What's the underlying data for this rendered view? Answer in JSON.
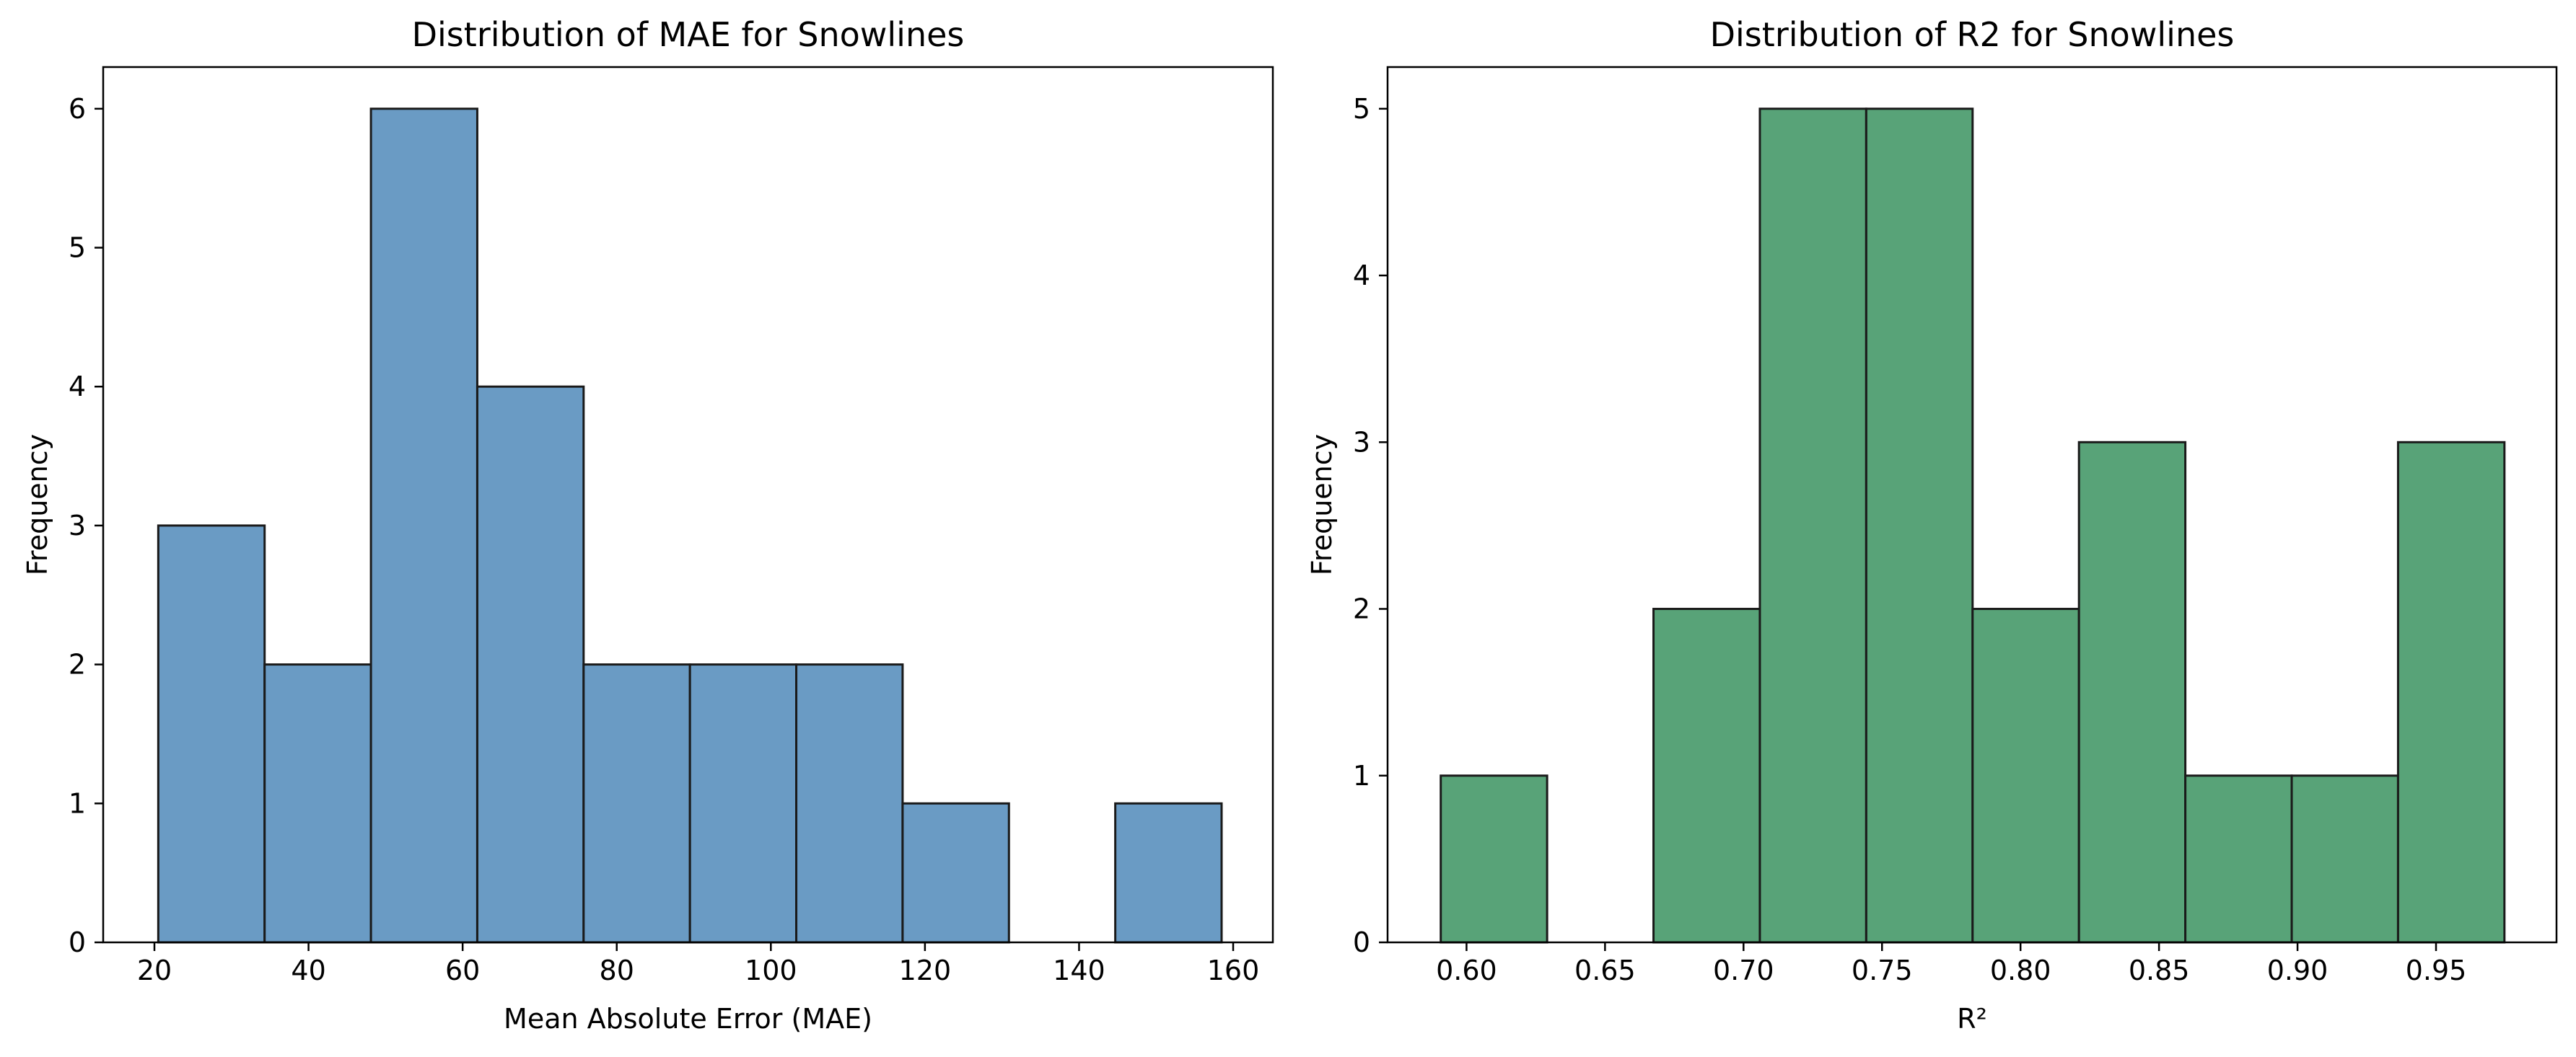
{
  "chart_data": [
    {
      "type": "bar",
      "title": "Distribution of MAE for Snowlines",
      "xlabel": "Mean Absolute Error (MAE)",
      "ylabel": "Frequency",
      "bar_color": "#6a9bc4",
      "edge_color": "#1a1a1a",
      "xlim": [
        13.35,
        165.15
      ],
      "ylim": [
        0,
        6.3
      ],
      "xticks": [
        20,
        40,
        60,
        80,
        100,
        120,
        140,
        160
      ],
      "yticks": [
        0,
        1,
        2,
        3,
        4,
        5,
        6
      ],
      "grid": false,
      "bins": [
        {
          "x0": 20.5,
          "x1": 34.3,
          "value": 3
        },
        {
          "x0": 34.3,
          "x1": 48.1,
          "value": 2
        },
        {
          "x0": 48.1,
          "x1": 61.9,
          "value": 6
        },
        {
          "x0": 61.9,
          "x1": 75.7,
          "value": 4
        },
        {
          "x0": 75.7,
          "x1": 89.5,
          "value": 2
        },
        {
          "x0": 89.5,
          "x1": 103.3,
          "value": 2
        },
        {
          "x0": 103.3,
          "x1": 117.1,
          "value": 2
        },
        {
          "x0": 117.1,
          "x1": 130.9,
          "value": 1
        },
        {
          "x0": 130.9,
          "x1": 144.7,
          "value": 0
        },
        {
          "x0": 144.7,
          "x1": 158.5,
          "value": 1
        }
      ]
    },
    {
      "type": "bar",
      "title": "Distribution of R2 for Snowlines",
      "xlabel": "R²",
      "ylabel": "Frequency",
      "bar_color": "#58a378",
      "edge_color": "#1a1a1a",
      "xlim": [
        0.5715,
        0.9935
      ],
      "ylim": [
        0,
        5.25
      ],
      "xticks": [
        0.6,
        0.65,
        0.7,
        0.75,
        0.8,
        0.85,
        0.9,
        0.95
      ],
      "yticks": [
        0,
        1,
        2,
        3,
        4,
        5
      ],
      "grid": false,
      "bins": [
        {
          "x0": 0.5907,
          "x1": 0.6291,
          "value": 1
        },
        {
          "x0": 0.6291,
          "x1": 0.6675,
          "value": 0
        },
        {
          "x0": 0.6675,
          "x1": 0.7059,
          "value": 2
        },
        {
          "x0": 0.7059,
          "x1": 0.7443,
          "value": 5
        },
        {
          "x0": 0.7443,
          "x1": 0.7827,
          "value": 5
        },
        {
          "x0": 0.7827,
          "x1": 0.8211,
          "value": 2
        },
        {
          "x0": 0.8211,
          "x1": 0.8595,
          "value": 3
        },
        {
          "x0": 0.8595,
          "x1": 0.8979,
          "value": 1
        },
        {
          "x0": 0.8979,
          "x1": 0.9363,
          "value": 1
        },
        {
          "x0": 0.9363,
          "x1": 0.9747,
          "value": 3
        }
      ]
    }
  ]
}
